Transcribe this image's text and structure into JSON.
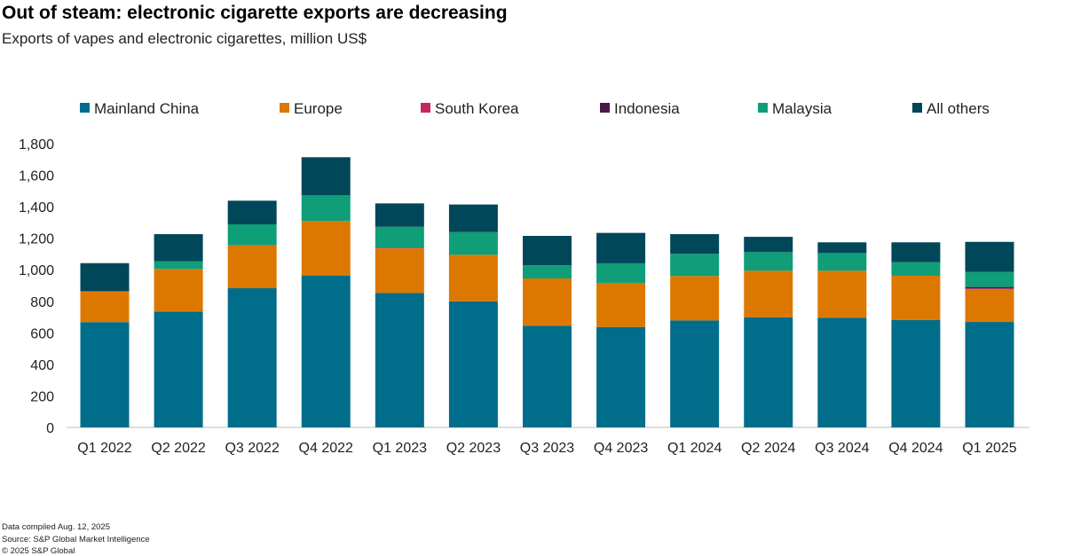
{
  "chart_data": {
    "type": "bar",
    "stacked": true,
    "title": "Out of steam: electronic cigarette exports are decreasing",
    "subtitle": "Exports of vapes and electronic cigarettes, million US$",
    "categories": [
      "Q1 2022",
      "Q2 2022",
      "Q3 2022",
      "Q4 2022",
      "Q1 2023",
      "Q2 2023",
      "Q3 2023",
      "Q4 2023",
      "Q1 2024",
      "Q2 2024",
      "Q3 2024",
      "Q4 2024",
      "Q1 2025"
    ],
    "series": [
      {
        "name": "Mainland China",
        "color": "#006d8a",
        "values": [
          668,
          735,
          883,
          964,
          853,
          800,
          645,
          637,
          679,
          699,
          696,
          681,
          669
        ]
      },
      {
        "name": "Europe",
        "color": "#dc7800",
        "values": [
          196,
          270,
          272,
          345,
          282,
          295,
          300,
          280,
          281,
          295,
          298,
          281,
          209
        ]
      },
      {
        "name": "South Korea",
        "color": "#c8285a",
        "values": [
          0,
          0,
          0,
          0,
          5,
          0,
          0,
          0,
          0,
          0,
          0,
          0,
          3
        ]
      },
      {
        "name": "Indonesia",
        "color": "#4a1a4a",
        "values": [
          0,
          0,
          0,
          0,
          0,
          0,
          0,
          0,
          0,
          0,
          0,
          0,
          10
        ]
      },
      {
        "name": "Malaysia",
        "color": "#0f9e78",
        "values": [
          0,
          49,
          133,
          163,
          133,
          144,
          84,
          124,
          141,
          118,
          112,
          86,
          95
        ]
      },
      {
        "name": "All others",
        "color": "#00475a",
        "values": [
          178,
          172,
          150,
          242,
          148,
          175,
          186,
          193,
          125,
          97,
          68,
          126,
          191
        ]
      }
    ],
    "yticks": [
      "0",
      "200",
      "400",
      "600",
      "800",
      "1,000",
      "1,200",
      "1,400",
      "1,600",
      "1,800"
    ],
    "ylim": [
      0,
      1800
    ],
    "legend": "top",
    "grid": false
  },
  "footer": {
    "compiled": "Data compiled Aug. 12, 2025",
    "source": "Source: S&P Global Market Intelligence",
    "copyright": "© 2025 S&P Global"
  }
}
